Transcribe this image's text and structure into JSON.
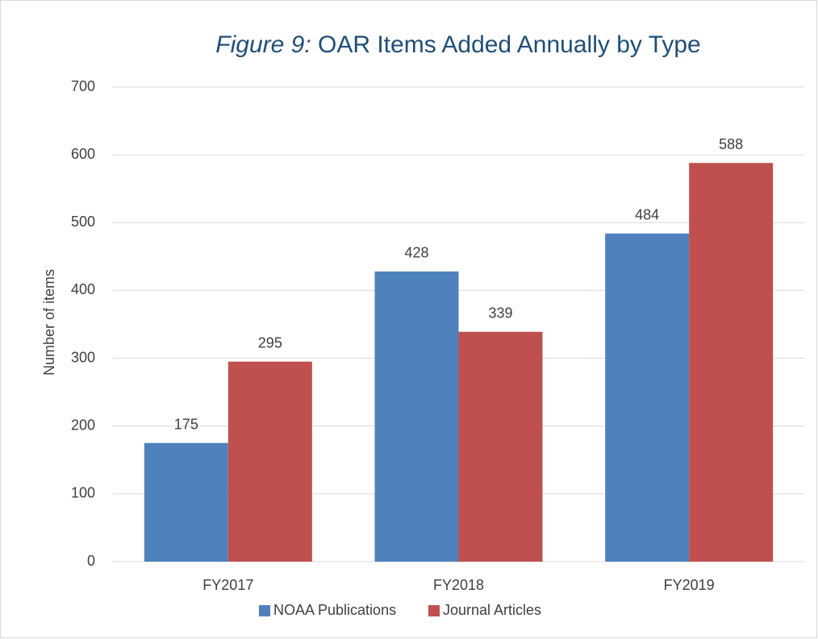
{
  "chart_data": {
    "type": "bar",
    "title": [
      "Figure 9:",
      "OAR Items Added Annually by Type"
    ],
    "y_label": "Number of items",
    "categories": [
      "FY2017",
      "FY2018",
      "FY2019"
    ],
    "series": [
      {
        "name": "NOAA Publications",
        "color": "#4f81bd",
        "values": [
          175,
          428,
          484
        ]
      },
      {
        "name": "Journal Articles",
        "color": "#c0504d",
        "values": [
          295,
          339,
          588
        ]
      }
    ],
    "ylim": [
      0,
      700
    ],
    "yticks": [
      0,
      100,
      200,
      300,
      400,
      500,
      600,
      700
    ],
    "grid": true,
    "legend": "bottom"
  }
}
